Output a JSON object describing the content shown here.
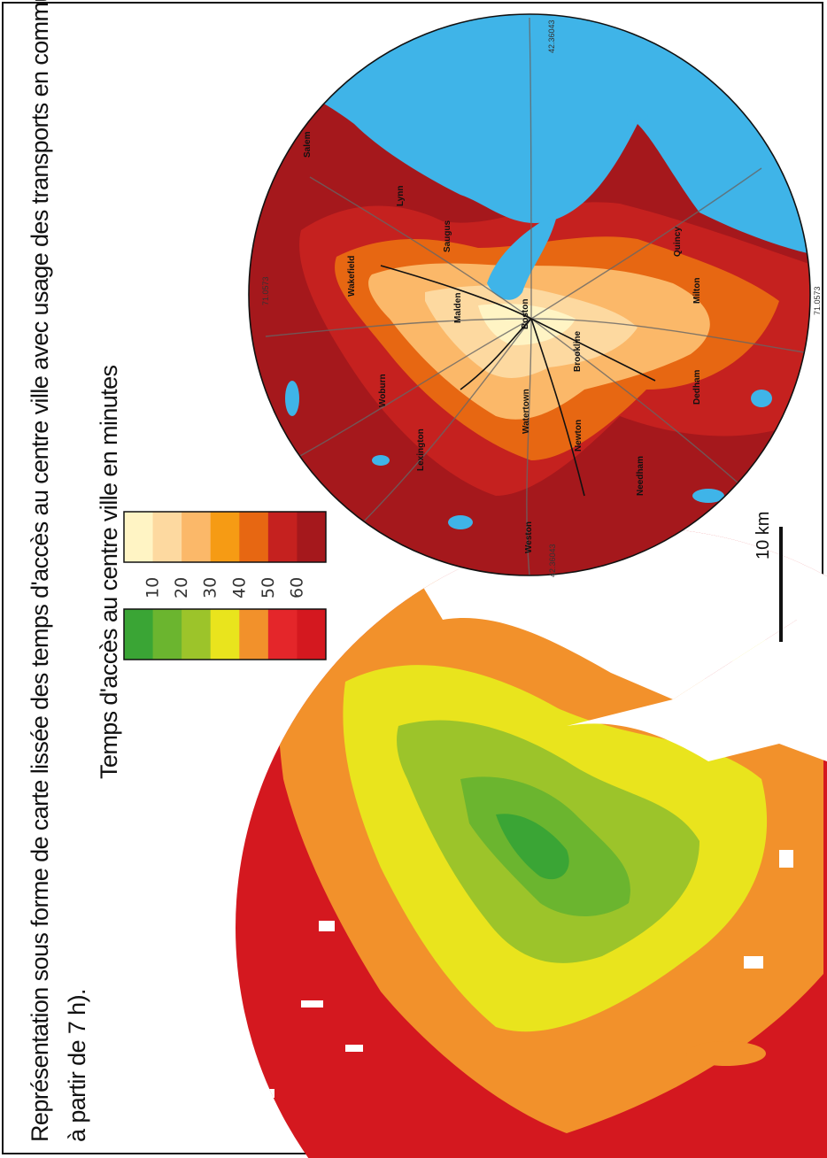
{
  "title": {
    "line1": "Représentation sous forme de carte lissée des temps d'accès au centre ville  avec usage des transports en commun (départ",
    "line2": "à partir de 7 h)."
  },
  "legend": {
    "title": "Temps d'accès au centre ville en minutes",
    "ticks": [
      "10",
      "20",
      "30",
      "40",
      "50",
      "60"
    ],
    "green_scale_colors": [
      "#3aa535",
      "#6bb52f",
      "#9cc42a",
      "#e9e41d",
      "#f2912b",
      "#e4262a",
      "#d4181f"
    ],
    "warm_scale_colors": [
      "#fff4c4",
      "#fdd9a0",
      "#fbb869",
      "#f69b14",
      "#e76712",
      "#c5211f",
      "#a5181c"
    ]
  },
  "scale_bar": {
    "label": "10 km"
  },
  "map_right": {
    "towns": [
      "Salem",
      "Lynn",
      "Saugus",
      "Wakefield",
      "Malden",
      "Boston",
      "Quincy",
      "Milton",
      "Brookline",
      "Woburn",
      "Lexington",
      "Watertown",
      "Newton",
      "Dedham",
      "Needham",
      "Weston"
    ],
    "coordinates": [
      "42.36043",
      "71.0573",
      "42.36043",
      "71.0573"
    ],
    "water_color": "#3fb4e8"
  },
  "map_left": {
    "water_color": "#ffffff"
  }
}
